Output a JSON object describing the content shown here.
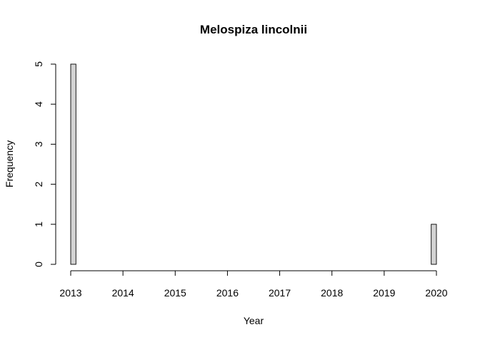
{
  "chart_data": {
    "type": "bar",
    "title": "Melospiza lincolnii",
    "xlabel": "Year",
    "ylabel": "Frequency",
    "bin_width": 0.1,
    "xlim": [
      2013,
      2020
    ],
    "ylim": [
      0,
      5
    ],
    "x_ticks": [
      "2013",
      "2014",
      "2015",
      "2016",
      "2017",
      "2018",
      "2019",
      "2020"
    ],
    "y_ticks": [
      "0",
      "1",
      "2",
      "3",
      "4",
      "5"
    ],
    "bins": [
      {
        "start": 2013.0,
        "end": 2013.1,
        "count": 5
      },
      {
        "start": 2013.1,
        "end": 2019.9,
        "count": 0
      },
      {
        "start": 2019.9,
        "end": 2020.0,
        "count": 1
      }
    ],
    "bar_fill": "#d3d3d3",
    "bar_stroke": "#000000",
    "grid": false
  }
}
